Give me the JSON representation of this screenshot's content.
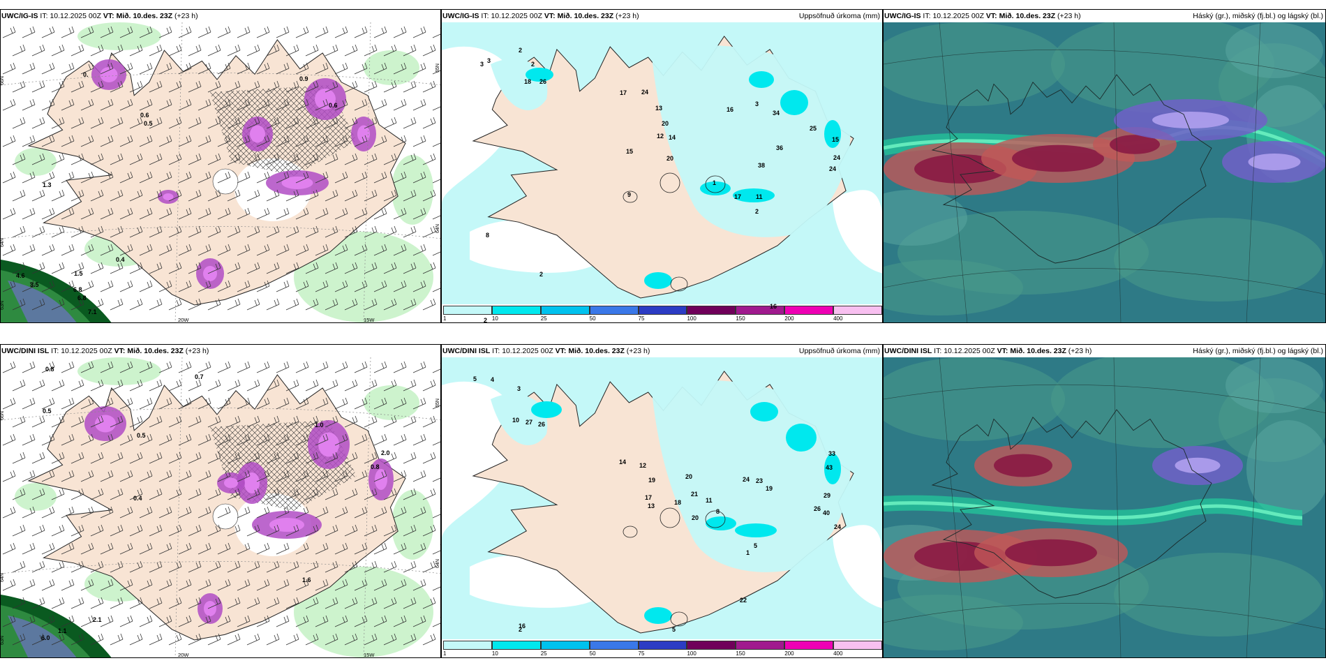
{
  "panels": [
    {
      "model": "UWC/IG-IS",
      "it_label": "IT:",
      "it": "10.12.2025 00Z",
      "vt_label": "VT:",
      "vt": "Mið. 10.des. 23Z",
      "lead": "(+23 h)",
      "right_title": "",
      "lat_labels": [
        "66N",
        "64N",
        "63N"
      ],
      "lon_labels": [
        "20W",
        "15W"
      ],
      "right_lat_labels": [
        "65N",
        "64N"
      ],
      "value_labels": [
        "0.",
        "0.9",
        "0.6",
        "1.3",
        "4.6",
        "3.5",
        "6.8",
        "6.8",
        "7.1",
        "1.5",
        "0.4",
        "0.6",
        "0.5"
      ]
    },
    {
      "model": "UWC/IG-IS",
      "it_label": "IT:",
      "it": "10.12.2025 00Z",
      "vt_label": "VT:",
      "vt": "Mið. 10.des. 23Z",
      "lead": "(+23 h)",
      "right_title": "Uppsöfnuð úrkoma (mm)",
      "value_labels": [
        "3",
        "3",
        "2",
        "2",
        "18",
        "26",
        "17",
        "24",
        "13",
        "20",
        "12",
        "14",
        "15",
        "20",
        "9",
        "16",
        "3",
        "34",
        "36",
        "38",
        "25",
        "15",
        "24",
        "24",
        "17",
        "11",
        "2",
        "1",
        "2",
        "8",
        "2",
        "16"
      ],
      "colorbar_ticks": [
        "1",
        "10",
        "25",
        "50",
        "75",
        "100",
        "150",
        "200",
        "400"
      ]
    },
    {
      "model": "UWC/IG-IS",
      "it_label": "IT:",
      "it": "10.12.2025 00Z",
      "vt_label": "VT:",
      "vt": "Mið. 10.des. 23Z",
      "lead": "(+23 h)",
      "right_title": "Háský (gr.), miðský (fj.bl.) og lágský (bl.)"
    },
    {
      "model": "UWC/DINI ISL",
      "it_label": "IT:",
      "it": "10.12.2025 00Z",
      "vt_label": "VT:",
      "vt": "Mið. 10.des. 23Z",
      "lead": "(+23 h)",
      "right_title": "",
      "lat_labels": [
        "66N",
        "64N",
        "63N"
      ],
      "lon_labels": [
        "20W",
        "15W"
      ],
      "right_lat_labels": [
        "65N",
        "64N"
      ],
      "value_labels": [
        "0.8",
        "0.7",
        "0.5",
        "1.0",
        "2.0",
        "0.8",
        "1.6",
        "1.1",
        "6.0",
        "2.1",
        "0.5",
        "0.4"
      ]
    },
    {
      "model": "UWC/DINI ISL",
      "it_label": "IT:",
      "it": "10.12.2025 00Z",
      "vt_label": "VT:",
      "vt": "Mið. 10.des. 23Z",
      "lead": "(+23 h)",
      "right_title": "Uppsöfnuð úrkoma (mm)",
      "value_labels": [
        "5",
        "4",
        "3",
        "10",
        "27",
        "26",
        "14",
        "12",
        "19",
        "20",
        "21",
        "18",
        "20",
        "17",
        "13",
        "24",
        "23",
        "19",
        "33",
        "43",
        "29",
        "26",
        "40",
        "24",
        "11",
        "8",
        "5",
        "1",
        "5",
        "2",
        "16",
        "22"
      ],
      "colorbar_ticks": [
        "1",
        "10",
        "25",
        "50",
        "75",
        "100",
        "150",
        "200",
        "400"
      ]
    },
    {
      "model": "UWC/DINI ISL",
      "it_label": "IT:",
      "it": "10.12.2025 00Z",
      "vt_label": "VT:",
      "vt": "Mið. 10.des. 23Z",
      "lead": "(+23 h)",
      "right_title": "Háský (gr.), miðský (fj.bl.) og lágský (bl.)"
    }
  ],
  "colorbar_colors": [
    "#c4f8f8",
    "#00e8ee",
    "#00c2ee",
    "#3a78e8",
    "#2c3cc4",
    "#70005a",
    "#a01a8e",
    "#ee00b4",
    "#f8c0f0"
  ],
  "colors": {
    "land": "#f8e4d4",
    "sea_light": "#c4f8f8",
    "precip_cyan": "#00e8ee",
    "purple": "#b04cc4",
    "green_light": "#c8f2c8",
    "green_dark": "#0a5a20",
    "cloud_teal": "#2e7a86",
    "cloud_green": "#3a9e78"
  }
}
